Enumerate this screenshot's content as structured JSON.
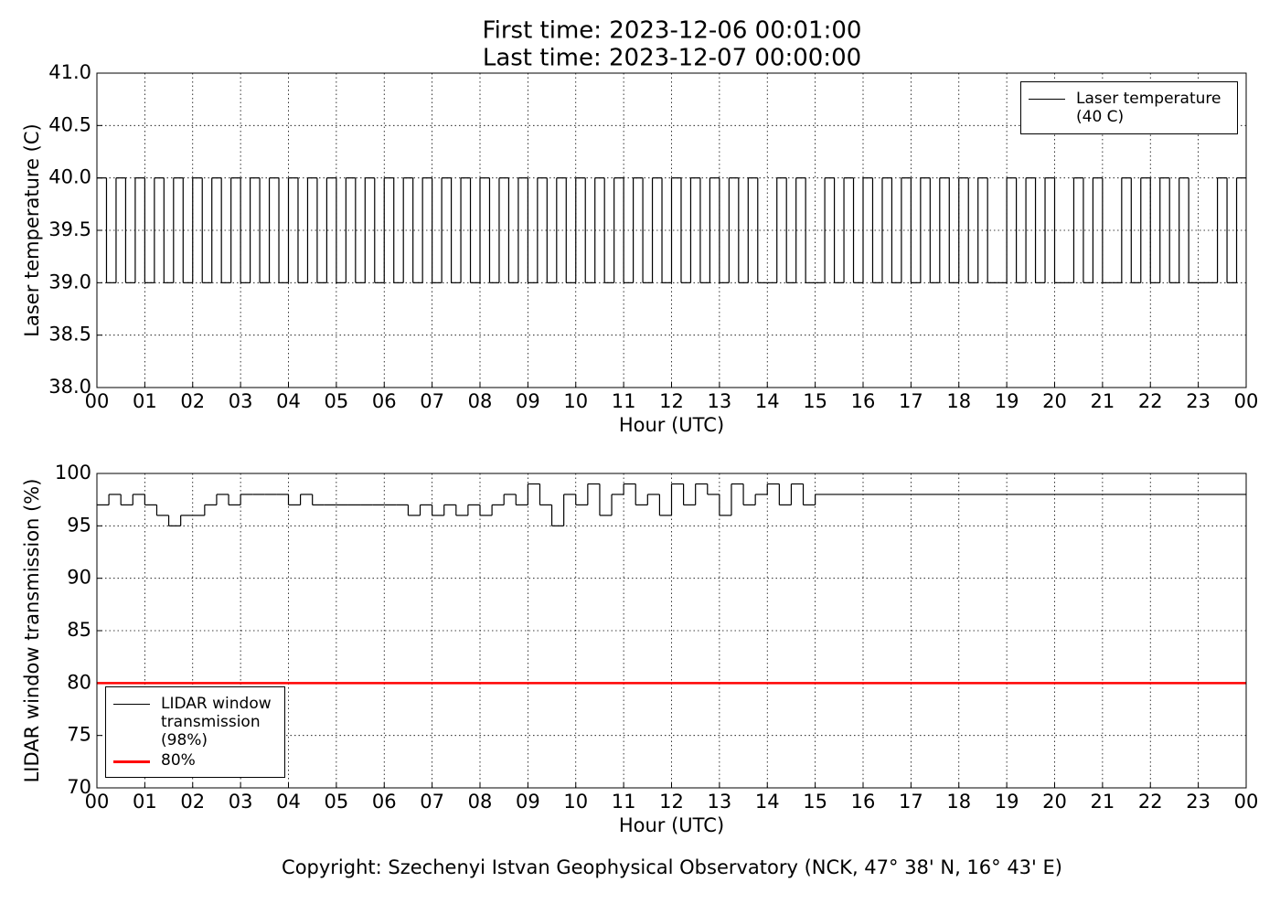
{
  "chart_data": [
    {
      "type": "line",
      "drawstyle": "steps",
      "title": [
        "First time: 2023-12-06 00:01:00",
        "Last time: 2023-12-07 00:00:00"
      ],
      "xlabel": "Hour (UTC)",
      "ylabel": "Laser temperature (C)",
      "xlim": [
        0,
        24
      ],
      "ylim": [
        38,
        41
      ],
      "grid": true,
      "legend": "upper right",
      "xticks": [
        {
          "value": 0,
          "label": "00"
        },
        {
          "value": 1,
          "label": "01"
        },
        {
          "value": 2,
          "label": "02"
        },
        {
          "value": 3,
          "label": "03"
        },
        {
          "value": 4,
          "label": "04"
        },
        {
          "value": 5,
          "label": "05"
        },
        {
          "value": 6,
          "label": "06"
        },
        {
          "value": 7,
          "label": "07"
        },
        {
          "value": 8,
          "label": "08"
        },
        {
          "value": 9,
          "label": "09"
        },
        {
          "value": 10,
          "label": "10"
        },
        {
          "value": 11,
          "label": "11"
        },
        {
          "value": 12,
          "label": "12"
        },
        {
          "value": 13,
          "label": "13"
        },
        {
          "value": 14,
          "label": "14"
        },
        {
          "value": 15,
          "label": "15"
        },
        {
          "value": 16,
          "label": "16"
        },
        {
          "value": 17,
          "label": "17"
        },
        {
          "value": 18,
          "label": "18"
        },
        {
          "value": 19,
          "label": "19"
        },
        {
          "value": 20,
          "label": "20"
        },
        {
          "value": 21,
          "label": "21"
        },
        {
          "value": 22,
          "label": "22"
        },
        {
          "value": 23,
          "label": "23"
        },
        {
          "value": 24,
          "label": "00"
        }
      ],
      "yticks": [
        {
          "value": 38,
          "label": "38.0"
        },
        {
          "value": 38.5,
          "label": "38.5"
        },
        {
          "value": 39,
          "label": "39.0"
        },
        {
          "value": 39.5,
          "label": "39.5"
        },
        {
          "value": 40,
          "label": "40.0"
        },
        {
          "value": 40.5,
          "label": "40.5"
        },
        {
          "value": 41,
          "label": "41.0"
        }
      ],
      "series": [
        {
          "name": "Laser temperature (40 C)",
          "color": "#000000",
          "x": [
            0,
            0.2,
            0.4,
            0.6,
            0.8,
            1,
            1.2,
            1.4,
            1.6,
            1.8,
            2,
            2.2,
            2.4,
            2.6,
            2.8,
            3,
            3.2,
            3.4,
            3.6,
            3.8,
            4,
            4.2,
            4.4,
            4.6,
            4.8,
            5,
            5.2,
            5.4,
            5.6,
            5.8,
            6,
            6.2,
            6.4,
            6.6,
            6.8,
            7,
            7.2,
            7.4,
            7.6,
            7.8,
            8,
            8.2,
            8.4,
            8.6,
            8.8,
            9,
            9.2,
            9.4,
            9.6,
            9.8,
            10,
            10.2,
            10.4,
            10.6,
            10.8,
            11,
            11.2,
            11.4,
            11.6,
            11.8,
            12,
            12.2,
            12.4,
            12.6,
            12.8,
            13,
            13.2,
            13.4,
            13.6,
            13.8,
            14,
            14.2,
            14.4,
            14.6,
            14.8,
            15,
            15.2,
            15.4,
            15.6,
            15.8,
            16,
            16.2,
            16.4,
            16.6,
            16.8,
            17,
            17.2,
            17.4,
            17.6,
            17.8,
            18,
            18.2,
            18.4,
            18.6,
            18.8,
            19,
            19.2,
            19.4,
            19.6,
            19.8,
            20,
            20.2,
            20.4,
            20.6,
            20.8,
            21,
            21.2,
            21.4,
            21.6,
            21.8,
            22,
            22.2,
            22.4,
            22.6,
            22.8,
            23,
            23.2,
            23.4,
            23.6,
            23.8,
            24
          ],
          "values": [
            40,
            39,
            40,
            39,
            40,
            39,
            40,
            39,
            40,
            39,
            40,
            39,
            40,
            39,
            40,
            39,
            40,
            39,
            40,
            39,
            40,
            39,
            40,
            39,
            40,
            39,
            40,
            39,
            40,
            39,
            40,
            39,
            40,
            39,
            40,
            39,
            40,
            39,
            40,
            39,
            40,
            39,
            40,
            39,
            40,
            39,
            40,
            39,
            40,
            39,
            40,
            39,
            40,
            39,
            40,
            39,
            40,
            39,
            40,
            39,
            40,
            39,
            40,
            39,
            40,
            39,
            40,
            39,
            40,
            39,
            39,
            40,
            39,
            40,
            39,
            39,
            40,
            39,
            40,
            39,
            40,
            39,
            40,
            39,
            40,
            39,
            40,
            39,
            40,
            39,
            40,
            39,
            40,
            39,
            39,
            40,
            39,
            40,
            39,
            40,
            39,
            39,
            40,
            39,
            40,
            39,
            39,
            40,
            39,
            40,
            39,
            40,
            39,
            40,
            39,
            39,
            39,
            40,
            39,
            40,
            40
          ]
        }
      ]
    },
    {
      "type": "line",
      "drawstyle": "steps",
      "xlabel": "Hour (UTC)",
      "ylabel": "LIDAR window transmission (%)",
      "xlim": [
        0,
        24
      ],
      "ylim": [
        70,
        100
      ],
      "grid": true,
      "legend": "lower left",
      "xticks": [
        {
          "value": 0,
          "label": "00"
        },
        {
          "value": 1,
          "label": "01"
        },
        {
          "value": 2,
          "label": "02"
        },
        {
          "value": 3,
          "label": "03"
        },
        {
          "value": 4,
          "label": "04"
        },
        {
          "value": 5,
          "label": "05"
        },
        {
          "value": 6,
          "label": "06"
        },
        {
          "value": 7,
          "label": "07"
        },
        {
          "value": 8,
          "label": "08"
        },
        {
          "value": 9,
          "label": "09"
        },
        {
          "value": 10,
          "label": "10"
        },
        {
          "value": 11,
          "label": "11"
        },
        {
          "value": 12,
          "label": "12"
        },
        {
          "value": 13,
          "label": "13"
        },
        {
          "value": 14,
          "label": "14"
        },
        {
          "value": 15,
          "label": "15"
        },
        {
          "value": 16,
          "label": "16"
        },
        {
          "value": 17,
          "label": "17"
        },
        {
          "value": 18,
          "label": "18"
        },
        {
          "value": 19,
          "label": "19"
        },
        {
          "value": 20,
          "label": "20"
        },
        {
          "value": 21,
          "label": "21"
        },
        {
          "value": 22,
          "label": "22"
        },
        {
          "value": 23,
          "label": "23"
        },
        {
          "value": 24,
          "label": "00"
        }
      ],
      "yticks": [
        70,
        75,
        80,
        85,
        90,
        95,
        100
      ],
      "series": [
        {
          "name": "LIDAR window transmission (98%)",
          "color": "#000000",
          "x": [
            0,
            0.25,
            0.5,
            0.75,
            1,
            1.25,
            1.5,
            1.75,
            2,
            2.25,
            2.5,
            2.75,
            3,
            3.25,
            3.5,
            3.75,
            4,
            4.25,
            4.5,
            4.75,
            5,
            5.25,
            5.5,
            5.75,
            6,
            6.25,
            6.5,
            6.75,
            7,
            7.25,
            7.5,
            7.75,
            8,
            8.25,
            8.5,
            8.75,
            9,
            9.25,
            9.5,
            9.75,
            10,
            10.25,
            10.5,
            10.75,
            11,
            11.25,
            11.5,
            11.75,
            12,
            12.25,
            12.5,
            12.75,
            13,
            13.25,
            13.5,
            13.75,
            14,
            14.25,
            14.5,
            14.75,
            15,
            24
          ],
          "values": [
            97,
            98,
            97,
            98,
            97,
            96,
            95,
            96,
            96,
            97,
            98,
            97,
            98,
            98,
            98,
            98,
            97,
            98,
            97,
            97,
            97,
            97,
            97,
            97,
            97,
            97,
            96,
            97,
            96,
            97,
            96,
            97,
            96,
            97,
            98,
            97,
            99,
            97,
            95,
            98,
            97,
            99,
            96,
            98,
            99,
            97,
            98,
            96,
            99,
            97,
            99,
            98,
            96,
            99,
            97,
            98,
            99,
            97,
            99,
            97,
            98,
            98
          ]
        },
        {
          "name": "80%",
          "color": "#ff0000",
          "x": [
            0,
            24
          ],
          "values": [
            80,
            80
          ]
        }
      ]
    }
  ],
  "footer": "Copyright: Szechenyi Istvan Geophysical Observatory (NCK, 47° 38' N, 16° 43' E)"
}
